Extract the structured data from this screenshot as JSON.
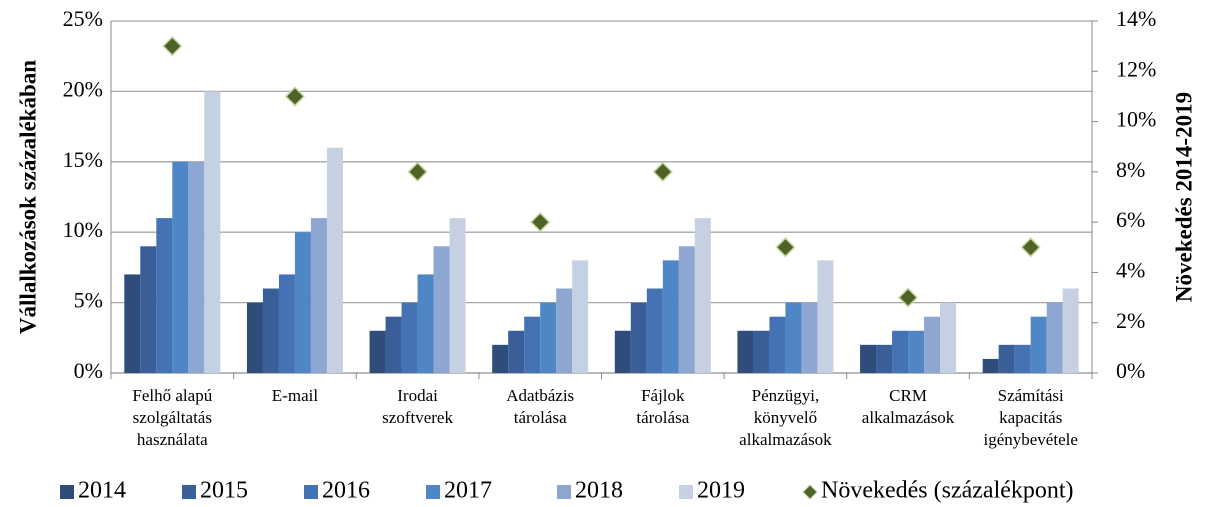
{
  "chart_data": {
    "type": "bar",
    "y_label": "Vállalkozások százalékában",
    "y2_label": "Növekedés 2014-2019",
    "categories": [
      [
        "Felhő alapú",
        "szolgáltatás",
        "használata"
      ],
      [
        "E-mail"
      ],
      [
        "Irodai",
        "szoftverek"
      ],
      [
        "Adatbázis",
        "tárolása"
      ],
      [
        "Fájlok",
        "tárolása"
      ],
      [
        "Pénzügyi,",
        "könyvelő",
        "alkalmazások"
      ],
      [
        "CRM",
        "alkalmazások"
      ],
      [
        "Számítási",
        "kapacitás",
        "igénybevétele"
      ]
    ],
    "series": [
      {
        "name": "2014",
        "color": "#2e4d7b",
        "values": [
          7,
          5,
          3,
          2,
          3,
          3,
          2,
          1
        ]
      },
      {
        "name": "2015",
        "color": "#3a5f98",
        "values": [
          9,
          6,
          4,
          3,
          5,
          3,
          2,
          2
        ]
      },
      {
        "name": "2016",
        "color": "#4472b4",
        "values": [
          11,
          7,
          5,
          4,
          6,
          4,
          3,
          2
        ]
      },
      {
        "name": "2017",
        "color": "#4f86c6",
        "values": [
          15,
          10,
          7,
          5,
          8,
          5,
          3,
          4
        ]
      },
      {
        "name": "2018",
        "color": "#8ea6d2",
        "values": [
          15,
          11,
          9,
          6,
          9,
          5,
          4,
          5
        ]
      },
      {
        "name": "2019",
        "color": "#c5d0e3",
        "values": [
          20,
          16,
          11,
          8,
          11,
          8,
          5,
          6
        ]
      },
      {
        "name": "Növekedés (százalékpont)",
        "color": "#4f6228",
        "axis": "y2",
        "marker": "diamond",
        "values": [
          13,
          11,
          8,
          6,
          8,
          5,
          3,
          5
        ]
      }
    ],
    "ylim": [
      0,
      25
    ],
    "yticks": [
      {
        "value": 0,
        "label": "0%"
      },
      {
        "value": 5,
        "label": "5%"
      },
      {
        "value": 10,
        "label": "10%"
      },
      {
        "value": 15,
        "label": "15%"
      },
      {
        "value": 20,
        "label": "20%"
      },
      {
        "value": 25,
        "label": "25%"
      }
    ],
    "y2lim": [
      0,
      14
    ],
    "y2ticks": [
      {
        "value": 0,
        "label": "0%"
      },
      {
        "value": 2,
        "label": "2%"
      },
      {
        "value": 4,
        "label": "4%"
      },
      {
        "value": 6,
        "label": "6%"
      },
      {
        "value": 8,
        "label": "8%"
      },
      {
        "value": 10,
        "label": "10%"
      },
      {
        "value": 12,
        "label": "12%"
      },
      {
        "value": 14,
        "label": "14%"
      }
    ],
    "grid": true,
    "legend": "bottom"
  }
}
